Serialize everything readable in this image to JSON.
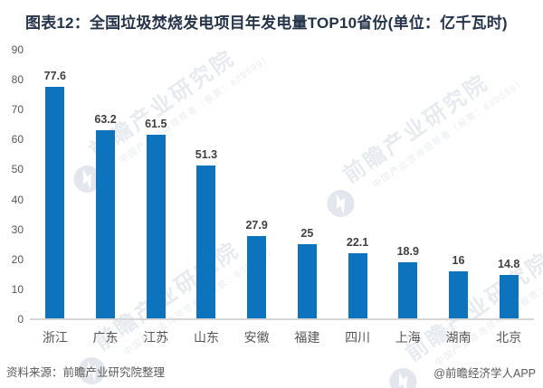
{
  "title": "图表12：全国垃圾焚烧发电项目年发电量TOP10省份(单位：亿千瓦时)",
  "chart_data": {
    "type": "bar",
    "title": "全国垃圾焚烧发电项目年发电量TOP10省份",
    "unit": "亿千瓦时",
    "categories": [
      "浙江",
      "广东",
      "江苏",
      "山东",
      "安徽",
      "福建",
      "四川",
      "上海",
      "湖南",
      "北京"
    ],
    "values": [
      77.6,
      63.2,
      61.5,
      51.3,
      27.9,
      25,
      22.1,
      18.9,
      16,
      14.8
    ],
    "value_labels": [
      "77.6",
      "63.2",
      "61.5",
      "51.3",
      "27.9",
      "25",
      "22.1",
      "18.9",
      "16",
      "14.8"
    ],
    "ylim": [
      0,
      90
    ],
    "yticks": [
      0,
      10,
      20,
      30,
      40,
      50,
      60,
      70,
      80,
      90
    ],
    "grid": false,
    "legend": false,
    "xlabel": "",
    "ylabel": ""
  },
  "footer": {
    "source": "资料来源：前瞻产业研究院整理",
    "credit": "@前瞻经济学人APP"
  },
  "watermark": {
    "brand": "前瞻产业研究院",
    "tagline": "中国产业咨询领导者（股票：839599）",
    "logo": "qianzhan-logo-icon"
  },
  "colors": {
    "bar": "#0e73bd",
    "title": "#26344a",
    "axis_label": "#565656",
    "value_label": "#3f3f3f",
    "baseline": "#d6d6d6",
    "footer": "#595959"
  }
}
